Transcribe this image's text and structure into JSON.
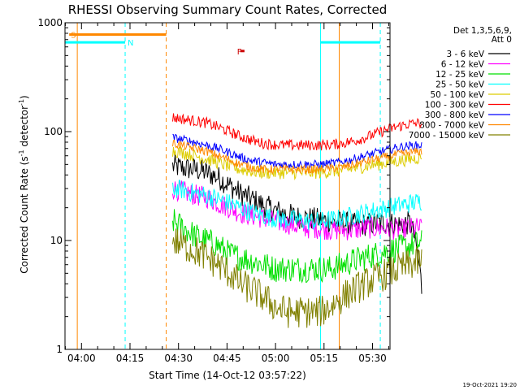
{
  "chart_data": {
    "type": "line",
    "title": "RHESSI Observing Summary Count Rates, Corrected",
    "xlabel": "Start Time (14-Oct-12 03:57:22)",
    "ylabel_main": "Corrected Count Rate (s",
    "ylabel_sup1": "-1",
    "ylabel_mid": " detector",
    "ylabel_sup2": "-1",
    "ylabel_end": ")",
    "y_scale": "log",
    "ylim": [
      1,
      1000
    ],
    "xlim_min": [
      -2.5,
      98
    ],
    "y_ticks": [
      {
        "value": 1,
        "label": "1"
      },
      {
        "value": 10,
        "label": "10"
      },
      {
        "value": 100,
        "label": "100"
      },
      {
        "value": 1000,
        "label": "1000"
      }
    ],
    "x_ticks": [
      {
        "value": 2.6,
        "label": "04:00"
      },
      {
        "value": 17.6,
        "label": "04:15"
      },
      {
        "value": 32.6,
        "label": "04:30"
      },
      {
        "value": 47.6,
        "label": "04:45"
      },
      {
        "value": 62.6,
        "label": "05:00"
      },
      {
        "value": 77.6,
        "label": "05:15"
      },
      {
        "value": 92.6,
        "label": "05:30"
      }
    ],
    "legend_title_1": "Det 1,3,5,6,9,",
    "legend_title_2": "Att 0",
    "legend_placement": "right, outside plot",
    "series": [
      {
        "name": "3 - 6 keV",
        "color": "#000000",
        "start": 30.8,
        "values": [
          48,
          46,
          45,
          42,
          38,
          32,
          27,
          24,
          21,
          19,
          17.5,
          16.5,
          16,
          15.5,
          15,
          14.5,
          14,
          14,
          14.5,
          14.5,
          14,
          14.5,
          3.6
        ],
        "noise": 0.22
      },
      {
        "name": "6 - 12 keV",
        "color": "#ff00ff",
        "start": 30.8,
        "values": [
          30,
          28,
          26,
          25,
          22,
          20,
          18,
          17,
          16,
          15,
          14.5,
          13.5,
          13,
          13,
          12.5,
          12.5,
          12.5,
          13,
          13,
          13,
          12.5,
          13,
          13
        ],
        "noise": 0.2
      },
      {
        "name": "12 - 25 keV",
        "color": "#00e000",
        "start": 30.8,
        "values": [
          15,
          13,
          11,
          10,
          9,
          7.5,
          7,
          6.5,
          6,
          5.5,
          5.5,
          5.5,
          5.5,
          5.5,
          5.5,
          6,
          6.5,
          7,
          7.5,
          8,
          8.5,
          9,
          9.5
        ],
        "noise": 0.25
      },
      {
        "name": "25 - 50 keV",
        "color": "#00ffff",
        "start": 30.8,
        "values": [
          30,
          29,
          27,
          26,
          24,
          22,
          20,
          18,
          17,
          16,
          15.5,
          15.5,
          15,
          15,
          15.5,
          16,
          17,
          18,
          19,
          20,
          21,
          22,
          23
        ],
        "noise": 0.18
      },
      {
        "name": "50 - 100 keV",
        "color": "#ddcc00",
        "start": 30.8,
        "values": [
          67,
          64,
          60,
          56,
          52,
          48,
          45,
          43,
          42,
          42,
          42,
          42,
          42,
          42,
          43,
          44,
          46,
          48,
          50,
          52,
          54,
          56,
          58
        ],
        "noise": 0.12
      },
      {
        "name": "100 - 300 keV",
        "color": "#ff0000",
        "start": 30.8,
        "values": [
          135,
          130,
          125,
          120,
          110,
          100,
          90,
          83,
          78,
          76,
          75,
          75,
          75,
          75,
          76,
          78,
          82,
          88,
          96,
          105,
          112,
          118,
          120
        ],
        "noise": 0.1
      },
      {
        "name": "300 - 800 keV",
        "color": "#0000ff",
        "start": 30.8,
        "values": [
          88,
          84,
          80,
          75,
          70,
          64,
          58,
          54,
          52,
          50,
          50,
          50,
          50,
          50,
          51,
          53,
          56,
          60,
          64,
          68,
          72,
          74,
          75
        ],
        "noise": 0.08
      },
      {
        "name": "800 - 7000 keV",
        "color": "#ff8800",
        "start": 30.8,
        "values": [
          78,
          74,
          70,
          66,
          60,
          55,
          50,
          47,
          45,
          45,
          45,
          45,
          45,
          45,
          46,
          47,
          50,
          53,
          56,
          59,
          62,
          64,
          66
        ],
        "noise": 0.08
      },
      {
        "name": "7000 - 15000 keV",
        "color": "#808000",
        "start": 30.8,
        "values": [
          10,
          9,
          8,
          7,
          6,
          5,
          4,
          3.5,
          3,
          2.5,
          2.2,
          2.2,
          2.2,
          2.2,
          2.5,
          3,
          3.5,
          4,
          4.5,
          5,
          5.5,
          6,
          6.5
        ],
        "noise": 0.3
      }
    ],
    "step_minutes": 3.5,
    "annotations": {
      "S": {
        "label": "S",
        "color": "#ff8800",
        "x": [
          -1.2,
          28.8
        ],
        "y": 780
      },
      "N": {
        "label": "N",
        "color": "#00ffff",
        "x": [
          -2.5,
          16.1
        ],
        "y": 660
      },
      "N2": {
        "label": "",
        "color": "#00ffff",
        "x": [
          76.5,
          95
        ],
        "y": 660
      },
      "F": {
        "label": "F",
        "color": "#cc0000",
        "x_label": 50.7,
        "x": [
          51.7,
          53
        ],
        "y": 550
      }
    },
    "vlines": [
      {
        "x": -2.5,
        "color": "#00ffff",
        "dash": false
      },
      {
        "x": 1.3,
        "color": "#ff8800",
        "dash": false
      },
      {
        "x": 16.1,
        "color": "#00ffff",
        "dash": true
      },
      {
        "x": 28.8,
        "color": "#ff8800",
        "dash": true
      },
      {
        "x": 76.5,
        "color": "#00ffff",
        "dash": false
      },
      {
        "x": 95.0,
        "color": "#00ffff",
        "dash": true
      },
      {
        "x": 82.3,
        "color": "#ff8800",
        "dash": false
      }
    ]
  },
  "footer_timestamp": "19-Oct-2021 19:20"
}
